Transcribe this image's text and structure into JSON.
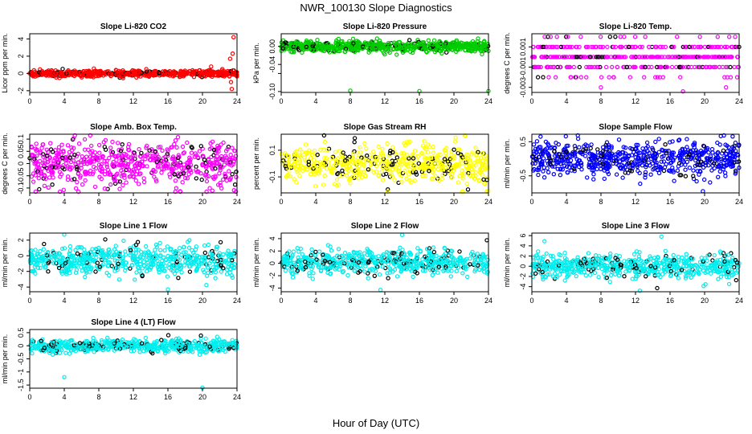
{
  "figure": {
    "title": "NWR_100130  Slope Diagnostics",
    "xlabel": "Hour of Day (UTC)"
  },
  "chart_data": [
    {
      "type": "scatter",
      "title": "Slope Li-820 CO2",
      "ylabel": "Licor ppm per min.",
      "color": "#ff0000",
      "xlim": [
        0,
        24
      ],
      "xticks": [
        0,
        4,
        8,
        12,
        16,
        20,
        24
      ],
      "ylim": [
        -2.2,
        4.6
      ],
      "yticks": [
        -2,
        0,
        2,
        4
      ],
      "sample": {
        "n": 600,
        "center": 0.0,
        "spread": 0.18,
        "outliers": [
          [
            23.6,
            4.2
          ],
          [
            23.5,
            2.3
          ],
          [
            23.2,
            1.7
          ],
          [
            23.3,
            -1.0
          ],
          [
            23.4,
            -1.8
          ],
          [
            21.0,
            0.8
          ],
          [
            22.3,
            0.5
          ]
        ]
      }
    },
    {
      "type": "scatter",
      "title": "Slope Li-820 Pressure",
      "ylabel": "kPa per min.",
      "color": "#00cc00",
      "xlim": [
        0,
        24
      ],
      "xticks": [
        0,
        4,
        8,
        12,
        16,
        20,
        24
      ],
      "ylim": [
        -0.102,
        0.028
      ],
      "yticks": [
        -0.1,
        -0.06,
        -0.04,
        0.0
      ],
      "yticklabels": [
        "-0.10",
        "",
        "-0.04",
        "0.00"
      ],
      "sample": {
        "n": 700,
        "center": 0.0,
        "spread": 0.006,
        "outliers": [
          [
            8,
            -0.098
          ],
          [
            16,
            -0.099
          ],
          [
            24,
            -0.099
          ]
        ]
      }
    },
    {
      "type": "scatter",
      "title": "Slope Li-820 Temp.",
      "ylabel": "degrees C per min.",
      "color": "#ff00ff",
      "xlim": [
        0,
        24
      ],
      "xticks": [
        0,
        4,
        8,
        12,
        16,
        20,
        24
      ],
      "ylim": [
        -0.0035,
        0.0023
      ],
      "yticks": [
        -0.003,
        -0.001,
        0.001
      ],
      "levels": [
        -0.003,
        -0.002,
        -0.001,
        0,
        0.001,
        0.002
      ],
      "sample": {
        "n": 500,
        "center": 0.0,
        "spread": 0.0009,
        "outliers": [
          [
            17.5,
            -0.0034
          ]
        ]
      }
    },
    {
      "type": "scatter",
      "title": "Slope Amb. Box Temp.",
      "ylabel": "degrees C per min.",
      "color": "#ff00ff",
      "xlim": [
        0,
        24
      ],
      "xticks": [
        0,
        4,
        8,
        12,
        16,
        20,
        24
      ],
      "ylim": [
        -0.12,
        0.12
      ],
      "yticks": [
        -0.1,
        -0.05,
        0.0,
        0.05,
        0.1
      ],
      "sample": {
        "n": 650,
        "center": 0.0,
        "spread": 0.045,
        "outliers": [
          [
            3.5,
            -0.115
          ]
        ]
      }
    },
    {
      "type": "scatter",
      "title": "Slope Gas Stream RH",
      "ylabel": "percent per min.",
      "color": "#ffff00",
      "xlim": [
        0,
        24
      ],
      "xticks": [
        0,
        4,
        8,
        12,
        16,
        20,
        24
      ],
      "ylim": [
        -0.22,
        0.22
      ],
      "yticks": [
        -0.1,
        0.1
      ],
      "sample": {
        "n": 620,
        "center": 0.0,
        "spread": 0.075,
        "outliers": [
          [
            23.8,
            -0.21
          ]
        ]
      }
    },
    {
      "type": "scatter",
      "title": "Slope Sample Flow",
      "ylabel": "ml/min per min.",
      "color": "#0000ff",
      "xlim": [
        0,
        24
      ],
      "xticks": [
        0,
        4,
        8,
        12,
        16,
        20,
        24
      ],
      "ylim": [
        -1.0,
        0.72
      ],
      "yticks": [
        -0.5,
        0.5
      ],
      "sample": {
        "n": 650,
        "center": 0.0,
        "spread": 0.25,
        "outliers": [
          [
            19.8,
            -0.95
          ],
          [
            1.0,
            0.65
          ]
        ]
      }
    },
    {
      "type": "scatter",
      "title": "Slope Line 1 Flow",
      "ylabel": "ml/min per min.",
      "color": "#00eeee",
      "xlim": [
        0,
        24
      ],
      "xticks": [
        0,
        4,
        8,
        12,
        16,
        20,
        24
      ],
      "ylim": [
        -4.6,
        2.9
      ],
      "yticks": [
        -4,
        -2,
        0,
        2
      ],
      "sample": {
        "n": 620,
        "center": -0.6,
        "spread": 0.9,
        "outliers": [
          [
            4,
            2.7
          ],
          [
            16,
            -4.3
          ]
        ]
      }
    },
    {
      "type": "scatter",
      "title": "Slope Line 2 Flow",
      "ylabel": "ml/min per min.",
      "color": "#00eeee",
      "xlim": [
        0,
        24
      ],
      "xticks": [
        0,
        4,
        8,
        12,
        16,
        20,
        24
      ],
      "ylim": [
        -4.6,
        4.9
      ],
      "yticks": [
        -4,
        -2,
        0,
        2,
        4
      ],
      "sample": {
        "n": 620,
        "center": 0.2,
        "spread": 1.0,
        "outliers": [
          [
            11.5,
            -4.3
          ],
          [
            14,
            4.6
          ]
        ]
      }
    },
    {
      "type": "scatter",
      "title": "Slope Line 3 Flow",
      "ylabel": "ml/min per min.",
      "color": "#00eeee",
      "xlim": [
        0,
        24
      ],
      "xticks": [
        0,
        4,
        8,
        12,
        16,
        20,
        24
      ],
      "ylim": [
        -5.0,
        6.5
      ],
      "yticks": [
        -4,
        -2,
        0,
        2,
        4,
        6
      ],
      "sample": {
        "n": 620,
        "center": 0.0,
        "spread": 1.2,
        "outliers": [
          [
            12.5,
            -4.8
          ],
          [
            15,
            5.8
          ]
        ]
      }
    },
    {
      "type": "scatter",
      "title": "Slope Line 4 (LT) Flow",
      "ylabel": "ml/min per min.",
      "color": "#00eeee",
      "xlim": [
        0,
        24
      ],
      "xticks": [
        0,
        4,
        8,
        12,
        16,
        20,
        24
      ],
      "ylim": [
        -1.62,
        0.62
      ],
      "yticks": [
        -1.5,
        -1.0,
        -0.5,
        0.0,
        0.5
      ],
      "sample": {
        "n": 620,
        "center": 0.0,
        "spread": 0.12,
        "outliers": [
          [
            4,
            -1.2
          ],
          [
            20,
            -1.6
          ]
        ]
      }
    }
  ]
}
